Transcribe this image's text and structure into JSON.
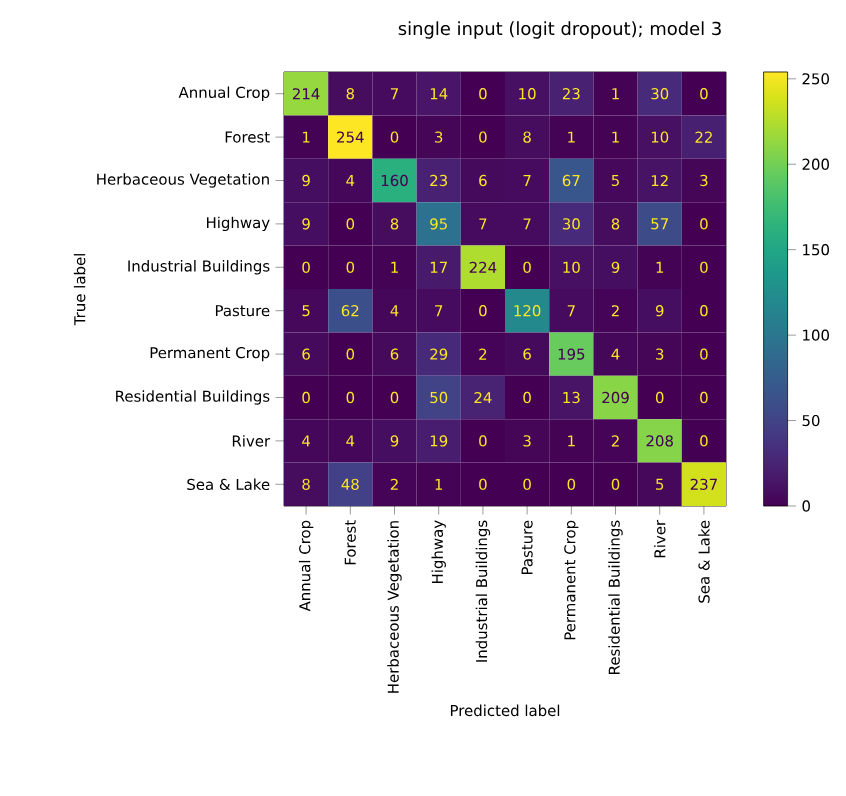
{
  "chart_data": {
    "type": "heatmap",
    "title": "single input (logit dropout); model 3",
    "xlabel": "Predicted label",
    "ylabel": "True label",
    "categories": [
      "Annual Crop",
      "Forest",
      "Herbaceous Vegetation",
      "Highway",
      "Industrial Buildings",
      "Pasture",
      "Permanent Crop",
      "Residential Buildings",
      "River",
      "Sea & Lake"
    ],
    "y_categories": [
      "Annual Crop",
      "Forest",
      "Herbaceous Vegetation",
      "Highway",
      "Industrial Buildings",
      "Pasture",
      "Permanent Crop",
      "Residential Buildings",
      "River",
      "Sea & Lake"
    ],
    "cells": [
      [
        214,
        8,
        7,
        14,
        0,
        10,
        23,
        1,
        30,
        0
      ],
      [
        1,
        254,
        0,
        3,
        0,
        8,
        1,
        1,
        10,
        22
      ],
      [
        9,
        4,
        160,
        23,
        6,
        7,
        67,
        5,
        12,
        3
      ],
      [
        9,
        0,
        8,
        95,
        7,
        7,
        30,
        8,
        57,
        0
      ],
      [
        0,
        0,
        1,
        17,
        224,
        0,
        10,
        9,
        1,
        0
      ],
      [
        5,
        62,
        4,
        7,
        0,
        120,
        7,
        2,
        9,
        0
      ],
      [
        6,
        0,
        6,
        29,
        2,
        6,
        195,
        4,
        3,
        0
      ],
      [
        0,
        0,
        0,
        50,
        24,
        0,
        13,
        209,
        0,
        0
      ],
      [
        4,
        4,
        9,
        19,
        0,
        3,
        1,
        2,
        208,
        0
      ],
      [
        8,
        48,
        2,
        1,
        0,
        0,
        0,
        0,
        5,
        237
      ]
    ],
    "clim": [
      0,
      254
    ],
    "cticks": [
      0,
      50,
      100,
      150,
      200,
      250
    ],
    "data_labels": true
  }
}
